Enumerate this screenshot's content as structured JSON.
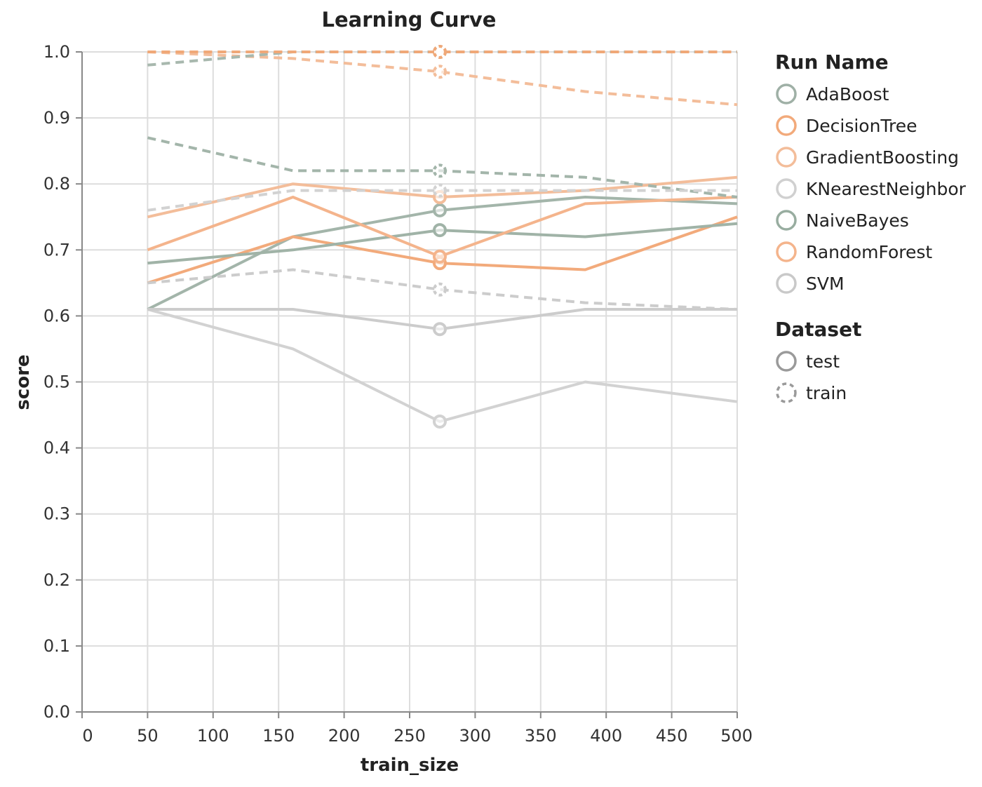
{
  "chart_data": {
    "type": "line",
    "title": "Learning Curve",
    "xlabel": "train_size",
    "ylabel": "score",
    "xlim": [
      0,
      500
    ],
    "ylim": [
      0,
      1
    ],
    "x_ticks": [
      0,
      50,
      100,
      150,
      200,
      250,
      300,
      350,
      400,
      450,
      500
    ],
    "y_ticks": [
      0.0,
      0.1,
      0.2,
      0.3,
      0.4,
      0.5,
      0.6,
      0.7,
      0.8,
      0.9,
      1.0
    ],
    "grid": true,
    "legend_placement": "right",
    "legends": [
      {
        "title": "Run Name",
        "entries": [
          {
            "label": "AdaBoost",
            "color": "#9fb0a6"
          },
          {
            "label": "DecisionTree",
            "color": "#f2aa7b"
          },
          {
            "label": "GradientBoosting",
            "color": "#f3bd9a"
          },
          {
            "label": "KNearestNeighbor",
            "color": "#d0d0d0"
          },
          {
            "label": "NaiveBayes",
            "color": "#98ada0"
          },
          {
            "label": "RandomForest",
            "color": "#f4b48c"
          },
          {
            "label": "SVM",
            "color": "#c9c9c9"
          }
        ]
      },
      {
        "title": "Dataset",
        "entries": [
          {
            "label": "test",
            "style": "solid",
            "color": "#9a9a9a"
          },
          {
            "label": "train",
            "style": "dashed",
            "color": "#9a9a9a"
          }
        ]
      }
    ],
    "x": [
      50,
      161,
      273,
      384,
      500
    ],
    "highlight_x": 273,
    "series": [
      {
        "name": "AdaBoost",
        "dataset": "test",
        "color": "#a3b5aa",
        "values": [
          0.61,
          0.72,
          0.76,
          0.78,
          0.77
        ]
      },
      {
        "name": "AdaBoost",
        "dataset": "train",
        "color": "#a3b5aa",
        "values": [
          0.87,
          0.82,
          0.82,
          0.81,
          0.78
        ]
      },
      {
        "name": "DecisionTree",
        "dataset": "test",
        "color": "#f2aa7b",
        "values": [
          0.65,
          0.72,
          0.68,
          0.67,
          0.75
        ]
      },
      {
        "name": "DecisionTree",
        "dataset": "train",
        "color": "#eda06a",
        "values": [
          1.0,
          1.0,
          1.0,
          1.0,
          1.0
        ]
      },
      {
        "name": "GradientBoosting",
        "dataset": "test",
        "color": "#f3bd9a",
        "values": [
          0.75,
          0.8,
          0.78,
          0.79,
          0.81
        ]
      },
      {
        "name": "GradientBoosting",
        "dataset": "train",
        "color": "#f3bd9a",
        "values": [
          1.0,
          0.99,
          0.97,
          0.94,
          0.92
        ]
      },
      {
        "name": "KNearestNeighbor",
        "dataset": "test",
        "color": "#d2d2d2",
        "values": [
          0.61,
          0.55,
          0.44,
          0.5,
          0.47
        ]
      },
      {
        "name": "KNearestNeighbor",
        "dataset": "train",
        "color": "#d2d2d2",
        "values": [
          0.76,
          0.79,
          0.79,
          0.79,
          0.79
        ]
      },
      {
        "name": "NaiveBayes",
        "dataset": "test",
        "color": "#a0b3a7",
        "values": [
          0.68,
          0.7,
          0.73,
          0.72,
          0.74
        ]
      },
      {
        "name": "NaiveBayes",
        "dataset": "train",
        "color": "#a8b8ae",
        "values": [
          0.98,
          1.0,
          1.0,
          1.0,
          1.0
        ]
      },
      {
        "name": "RandomForest",
        "dataset": "test",
        "color": "#f4b48c",
        "values": [
          0.7,
          0.78,
          0.69,
          0.77,
          0.78
        ]
      },
      {
        "name": "RandomForest",
        "dataset": "train",
        "color": "#f0a878",
        "values": [
          1.0,
          1.0,
          1.0,
          1.0,
          1.0
        ]
      },
      {
        "name": "SVM",
        "dataset": "test",
        "color": "#cccccc",
        "values": [
          0.61,
          0.61,
          0.58,
          0.61,
          0.61
        ]
      },
      {
        "name": "SVM",
        "dataset": "train",
        "color": "#cccccc",
        "values": [
          0.65,
          0.67,
          0.64,
          0.62,
          0.61
        ]
      }
    ]
  }
}
